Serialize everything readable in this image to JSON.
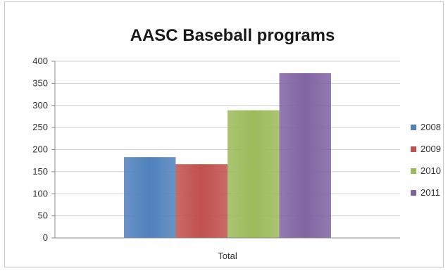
{
  "chart_data": {
    "type": "bar",
    "title": "AASC Baseball programs",
    "categories": [
      "Total"
    ],
    "series": [
      {
        "name": "2008",
        "values": [
          183
        ],
        "color": "#4f81bd"
      },
      {
        "name": "2009",
        "values": [
          167
        ],
        "color": "#c0504d"
      },
      {
        "name": "2010",
        "values": [
          289
        ],
        "color": "#9bbb59"
      },
      {
        "name": "2011",
        "values": [
          373
        ],
        "color": "#8064a2"
      }
    ],
    "ylim": [
      0,
      400
    ],
    "yticks": [
      "0",
      "50",
      "100",
      "150",
      "200",
      "250",
      "300",
      "350",
      "400"
    ],
    "grid": true,
    "legend": "right"
  }
}
